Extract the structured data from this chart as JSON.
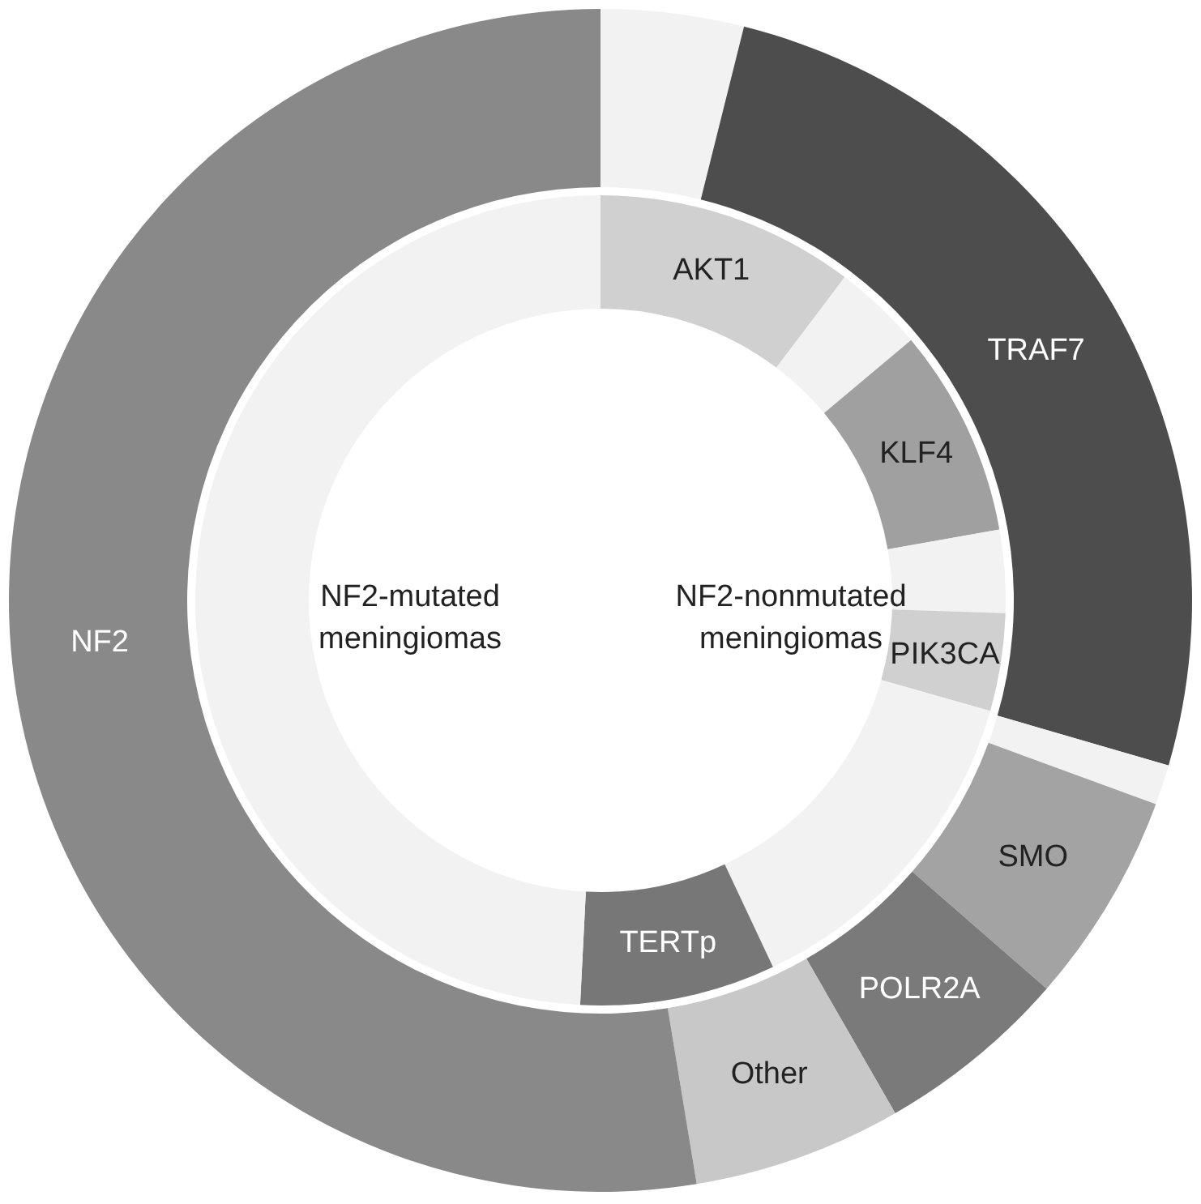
{
  "chart_data": [
    {
      "type": "donut",
      "categories": [
        null,
        "TRAF7",
        null,
        "SMO",
        "POLR2A",
        "Other",
        "NF2"
      ],
      "values": [
        3.9,
        25.6,
        1.1,
        5.8,
        5.3,
        5.7,
        52.6
      ],
      "colors": [
        "#f2f2f2",
        "#4d4d4d",
        "#f2f2f2",
        "#a3a3a3",
        "#7a7a7a",
        "#c8c8c8",
        "#898989"
      ],
      "annotations": [
        "NF2-mutated\nmeningiomas",
        "NF2-nonmutated\nmeningiomas"
      ]
    },
    {
      "type": "donut",
      "categories": [
        "AKT1",
        null,
        "KLF4",
        null,
        "PIK3CA",
        null,
        "TERTp",
        null
      ],
      "values": [
        10.3,
        3.6,
        8.3,
        3.3,
        3.9,
        13.6,
        7.8,
        49.2
      ],
      "colors": [
        "#d0d0d0",
        "#f2f2f2",
        "#a0a0a0",
        "#f2f2f2",
        "#d0d0d0",
        "#f2f2f2",
        "#777777",
        "#f2f2f2"
      ]
    }
  ]
}
